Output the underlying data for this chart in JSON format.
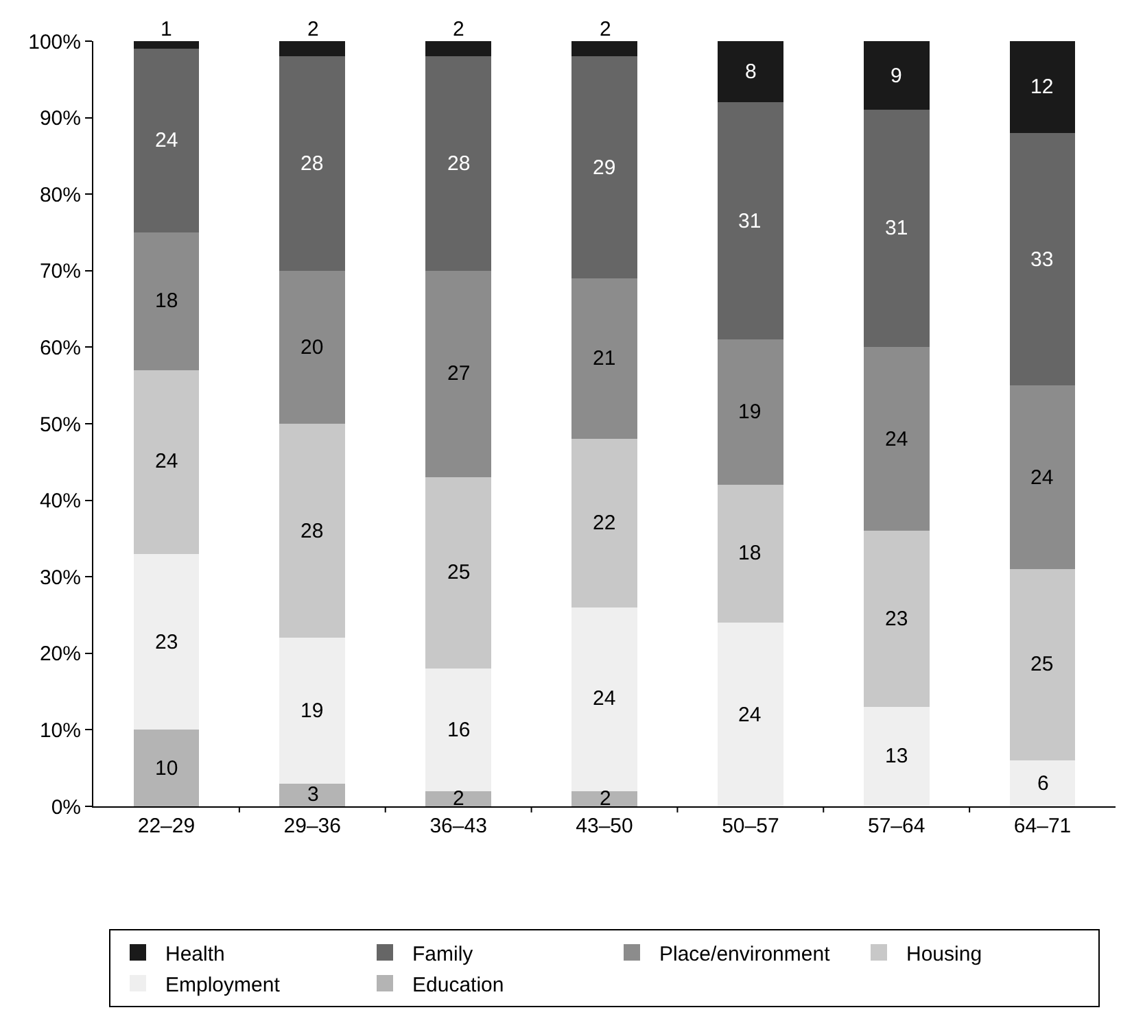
{
  "chart_data": {
    "type": "bar",
    "stacked": true,
    "categories": [
      "22–29",
      "29–36",
      "36–43",
      "43–50",
      "50–57",
      "57–64",
      "64–71"
    ],
    "ylim": [
      0,
      100
    ],
    "yticks": [
      {
        "value": 0,
        "label": "0%"
      },
      {
        "value": 10,
        "label": "10%"
      },
      {
        "value": 20,
        "label": "20%"
      },
      {
        "value": 30,
        "label": "30%"
      },
      {
        "value": 40,
        "label": "40%"
      },
      {
        "value": 50,
        "label": "50%"
      },
      {
        "value": 60,
        "label": "60%"
      },
      {
        "value": 70,
        "label": "70%"
      },
      {
        "value": 80,
        "label": "80%"
      },
      {
        "value": 90,
        "label": "90%"
      },
      {
        "value": 100,
        "label": "100%"
      }
    ],
    "grid": false,
    "legend": "bottom",
    "series": [
      {
        "name": "Education",
        "color": "#b4b4b4",
        "values": [
          10,
          3,
          2,
          2,
          0,
          0,
          0
        ],
        "value_labels": [
          "10",
          "3",
          "2",
          "2",
          null,
          null,
          null
        ]
      },
      {
        "name": "Employment",
        "color": "#efefef",
        "values": [
          23,
          19,
          16,
          24,
          24,
          13,
          6
        ],
        "value_labels": [
          "23",
          "19",
          "16",
          "24",
          "24",
          "13",
          "6"
        ]
      },
      {
        "name": "Housing",
        "color": "#c8c8c8",
        "values": [
          24,
          28,
          25,
          22,
          18,
          23,
          25
        ],
        "value_labels": [
          "24",
          "28",
          "25",
          "22",
          "18",
          "23",
          "25"
        ]
      },
      {
        "name": "Place/environment",
        "color": "#8c8c8c",
        "values": [
          18,
          20,
          27,
          21,
          19,
          24,
          24
        ],
        "value_labels": [
          "18",
          "20",
          "27",
          "21",
          "19",
          "24",
          "24"
        ]
      },
      {
        "name": "Family",
        "color": "#666666",
        "values": [
          24,
          28,
          28,
          29,
          31,
          31,
          33
        ],
        "value_labels": [
          "24",
          "28",
          "28",
          "29",
          "31",
          "31",
          "33"
        ]
      },
      {
        "name": "Health",
        "color": "#1a1a1a",
        "values": [
          1,
          2,
          2,
          2,
          8,
          9,
          12
        ],
        "value_labels": [
          "1",
          "2",
          "2",
          "2",
          "8",
          "9",
          "12"
        ]
      }
    ]
  }
}
